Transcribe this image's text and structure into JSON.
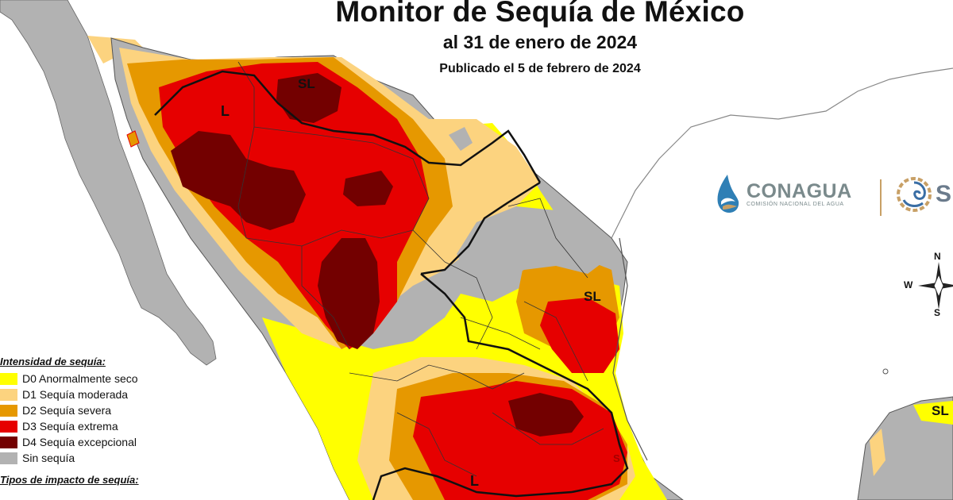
{
  "title": {
    "main": "Monitor de Sequía de México",
    "date": "al 31 de enero de 2024",
    "published": "Publicado el 5 de febrero de 2024"
  },
  "map": {
    "labels": [
      "L",
      "SL",
      "SL",
      "L",
      "SL",
      "S"
    ],
    "colors": {
      "d0": "#ffff00",
      "d1": "#fcd37f",
      "d2": "#e69800",
      "d3": "#e60000",
      "d4": "#730000",
      "none": "#b2b2b2"
    }
  },
  "legend": {
    "title": "Intensidad de sequía:",
    "items": [
      {
        "code": "D0",
        "label": "D0 Anormalmente seco",
        "color": "#ffff00"
      },
      {
        "code": "D1",
        "label": "D1 Sequía moderada",
        "color": "#fcd37f"
      },
      {
        "code": "D2",
        "label": "D2 Sequía severa",
        "color": "#e69800"
      },
      {
        "code": "D3",
        "label": "D3 Sequía extrema",
        "color": "#e60000"
      },
      {
        "code": "D4",
        "label": "D4 Sequía excepcional",
        "color": "#730000"
      },
      {
        "code": "none",
        "label": "Sin sequía",
        "color": "#b2b2b2"
      }
    ],
    "impact_title": "Tipos de impacto de sequía:"
  },
  "logos": {
    "conagua_name": "CONAGUA",
    "conagua_sub": "COMISIÓN NACIONAL DEL AGUA",
    "second_letter": "S"
  },
  "compass": {
    "n": "N",
    "s": "S",
    "w": "W"
  }
}
